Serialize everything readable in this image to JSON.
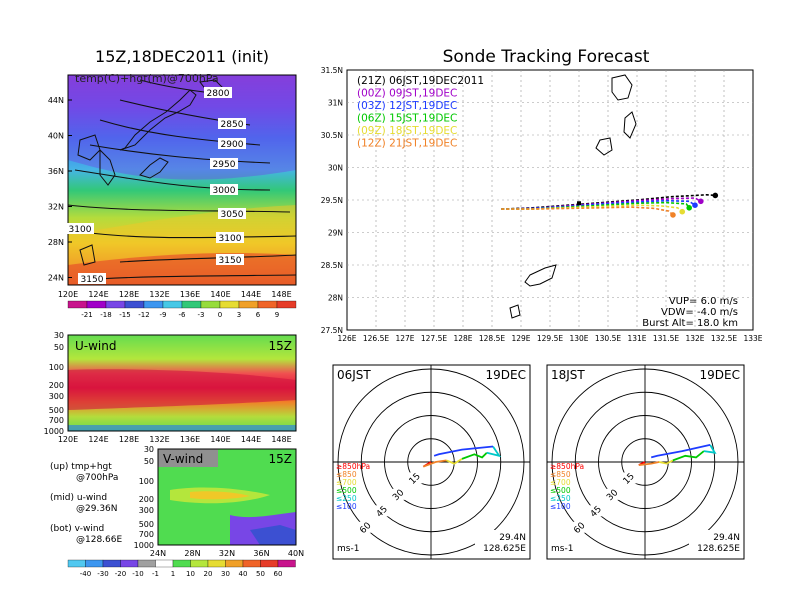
{
  "left_panel": {
    "title": "15Z,18DEC2011 (init)",
    "map_label": "temp(C)+hgt(m)@700hPa",
    "lat_ticks": [
      "44N",
      "40N",
      "36N",
      "32N",
      "28N",
      "24N"
    ],
    "lon_ticks": [
      "120E",
      "124E",
      "128E",
      "132E",
      "136E",
      "140E",
      "144E",
      "148E"
    ],
    "contours": [
      "2800",
      "2850",
      "2900",
      "2950",
      "3000",
      "3050",
      "3100",
      "3100",
      "3150",
      "3150"
    ],
    "temp_colorbar": [
      "-21",
      "-18",
      "-15",
      "-12",
      "-9",
      "-6",
      "-3",
      "0",
      "3",
      "6",
      "9"
    ],
    "u_wind": {
      "label": "U-wind",
      "time": "15Z",
      "p_ticks": [
        "30",
        "50",
        "100",
        "200",
        "300",
        "500",
        "700",
        "1000"
      ],
      "lon_ticks": [
        "120E",
        "124E",
        "128E",
        "132E",
        "136E",
        "140E",
        "144E",
        "148E"
      ]
    },
    "v_wind": {
      "label": "V-wind",
      "time": "15Z",
      "p_ticks": [
        "30",
        "50",
        "100",
        "200",
        "300",
        "500",
        "700",
        "1000"
      ],
      "lat_ticks": [
        "24N",
        "28N",
        "32N",
        "36N",
        "40N"
      ]
    },
    "wind_colorbar": [
      "-40",
      "-30",
      "-20",
      "-10",
      "-1",
      "1",
      "10",
      "20",
      "30",
      "40",
      "50",
      "60"
    ],
    "notes": [
      {
        "line1": "(up) tmp+hgt",
        "line2": "@700hPa"
      },
      {
        "line1": "(mid) u-wind",
        "line2": "@29.36N"
      },
      {
        "line1": "(bot) v-wind",
        "line2": "@128.66E"
      }
    ]
  },
  "colors": {
    "purple": "#a000c8",
    "blue": "#1e3cff",
    "green": "#00c800",
    "yellow": "#e6dc32",
    "orange": "#f08228",
    "red": "#fa3c3c"
  },
  "tracking": {
    "title": "Sonde Tracking Forecast",
    "legend": [
      {
        "text": "(21Z) 06JST,19DEC2011",
        "color": "#000000"
      },
      {
        "text": "(00Z) 09JST,19DEC",
        "color": "#a000c8"
      },
      {
        "text": "(03Z) 12JST,19DEC",
        "color": "#1e3cff"
      },
      {
        "text": "(06Z) 15JST,19DEC",
        "color": "#00c800"
      },
      {
        "text": "(09Z) 18JST,19DEC",
        "color": "#e6dc32"
      },
      {
        "text": "(12Z) 21JST,19DEC",
        "color": "#f08228"
      }
    ],
    "params": [
      "VUP= 6.0 m/s",
      "VDW= -4.0 m/s",
      "Burst Alt= 18.0 km"
    ]
  },
  "hodographs": [
    {
      "time": "06JST",
      "date": "19DEC",
      "lat": "29.4N",
      "lon": "128.625E",
      "unit": "ms-1",
      "rings": [
        "15",
        "30",
        "45",
        "60"
      ]
    },
    {
      "time": "18JST",
      "date": "19DEC",
      "lat": "29.4N",
      "lon": "128.625E",
      "unit": "ms-1",
      "rings": [
        "15",
        "30",
        "45",
        "60"
      ]
    }
  ],
  "hodo_legend": [
    {
      "text": "≥850hPa",
      "color": "#ff0000"
    },
    {
      "text": "≤850",
      "color": "#f08228"
    },
    {
      "text": "≤700",
      "color": "#e6dc32"
    },
    {
      "text": "≤500",
      "color": "#00c800"
    },
    {
      "text": "≤250",
      "color": "#00c8c8"
    },
    {
      "text": "≤100",
      "color": "#1e3cff"
    }
  ],
  "chart_data": [
    {
      "type": "line",
      "title": "Sonde Tracking Forecast",
      "xlabel": "",
      "ylabel": "",
      "xlim": [
        126,
        133
      ],
      "ylim": [
        27.5,
        31.5
      ],
      "x_ticks": [
        "126E",
        "126.5E",
        "127E",
        "127.5E",
        "128E",
        "128.5E",
        "129E",
        "129.5E",
        "130E",
        "130.5E",
        "131E",
        "131.5E",
        "132E",
        "132.5E",
        "133E"
      ],
      "y_ticks": [
        "27.5N",
        "28N",
        "28.5N",
        "29N",
        "29.5N",
        "30N",
        "30.5N",
        "31N",
        "31.5N"
      ],
      "grid": true,
      "series": [
        {
          "name": "(21Z) 06JST,19DEC2011",
          "color": "#000000",
          "x": [
            128.66,
            129.2,
            129.8,
            130.4,
            131.0,
            131.6,
            132.2,
            132.35
          ],
          "y": [
            29.36,
            29.38,
            29.42,
            29.46,
            29.5,
            29.55,
            29.58,
            29.57
          ]
        },
        {
          "name": "(00Z) 09JST,19DEC",
          "color": "#a000c8",
          "x": [
            128.66,
            129.2,
            129.8,
            130.4,
            131.0,
            131.6,
            132.0,
            132.1
          ],
          "y": [
            29.36,
            29.37,
            29.41,
            29.45,
            29.49,
            29.52,
            29.53,
            29.48
          ]
        },
        {
          "name": "(03Z) 12JST,19DEC",
          "color": "#1e3cff",
          "x": [
            128.66,
            129.2,
            129.8,
            130.4,
            131.0,
            131.5,
            131.9,
            132.0
          ],
          "y": [
            29.36,
            29.37,
            29.4,
            29.44,
            29.47,
            29.49,
            29.48,
            29.42
          ]
        },
        {
          "name": "(06Z) 15JST,19DEC",
          "color": "#00c800",
          "x": [
            128.66,
            129.2,
            129.8,
            130.4,
            131.0,
            131.5,
            131.85,
            131.9
          ],
          "y": [
            29.36,
            29.36,
            29.39,
            29.42,
            29.45,
            29.46,
            29.44,
            29.38
          ]
        },
        {
          "name": "(09Z) 18JST,19DEC",
          "color": "#e6dc32",
          "x": [
            128.66,
            129.2,
            129.8,
            130.4,
            131.0,
            131.4,
            131.7,
            131.78
          ],
          "y": [
            29.36,
            29.36,
            29.38,
            29.4,
            29.42,
            29.41,
            29.38,
            29.32
          ]
        },
        {
          "name": "(12Z) 21JST,19DEC",
          "color": "#f08228",
          "x": [
            128.66,
            129.2,
            129.8,
            130.4,
            130.9,
            131.3,
            131.55,
            131.62
          ],
          "y": [
            29.36,
            29.36,
            29.37,
            29.38,
            29.39,
            29.37,
            29.33,
            29.27
          ]
        }
      ]
    },
    {
      "type": "line",
      "title": "06JST 19DEC",
      "rings": [
        15,
        30,
        45,
        60
      ],
      "unit": "ms-1",
      "series": [
        {
          "name": "≥850hPa",
          "color": "#ff0000",
          "x": [
            0,
            -5
          ],
          "y": [
            0,
            -3
          ]
        },
        {
          "name": "≤850",
          "color": "#f08228",
          "x": [
            -5,
            3,
            10
          ],
          "y": [
            -3,
            0,
            1
          ]
        },
        {
          "name": "≤700",
          "color": "#e6dc32",
          "x": [
            10,
            15,
            20
          ],
          "y": [
            1,
            -1,
            2
          ]
        },
        {
          "name": "≤500",
          "color": "#00c800",
          "x": [
            20,
            28,
            33,
            36
          ],
          "y": [
            2,
            5,
            3,
            6
          ]
        },
        {
          "name": "≤250",
          "color": "#00c8c8",
          "x": [
            36,
            44,
            40
          ],
          "y": [
            6,
            4,
            10
          ]
        },
        {
          "name": "≤100",
          "color": "#1e3cff",
          "x": [
            40,
            20,
            5,
            2
          ],
          "y": [
            10,
            8,
            5,
            4
          ]
        }
      ]
    },
    {
      "type": "line",
      "title": "18JST 19DEC",
      "rings": [
        15,
        30,
        45,
        60
      ],
      "unit": "ms-1",
      "series": [
        {
          "name": "≥850hPa",
          "color": "#ff0000",
          "x": [
            0,
            -4
          ],
          "y": [
            0,
            -2
          ]
        },
        {
          "name": "≤850",
          "color": "#f08228",
          "x": [
            -4,
            4,
            9
          ],
          "y": [
            -2,
            -1,
            0
          ]
        },
        {
          "name": "≤700",
          "color": "#e6dc32",
          "x": [
            9,
            14,
            18
          ],
          "y": [
            0,
            -1,
            1
          ]
        },
        {
          "name": "≤500",
          "color": "#00c800",
          "x": [
            18,
            26,
            33,
            38
          ],
          "y": [
            1,
            4,
            3,
            7
          ]
        },
        {
          "name": "≤250",
          "color": "#00c8c8",
          "x": [
            38,
            45,
            42
          ],
          "y": [
            7,
            6,
            11
          ]
        },
        {
          "name": "≤100",
          "color": "#1e3cff",
          "x": [
            42,
            24,
            8,
            4
          ],
          "y": [
            11,
            7,
            4,
            3
          ]
        }
      ]
    }
  ]
}
